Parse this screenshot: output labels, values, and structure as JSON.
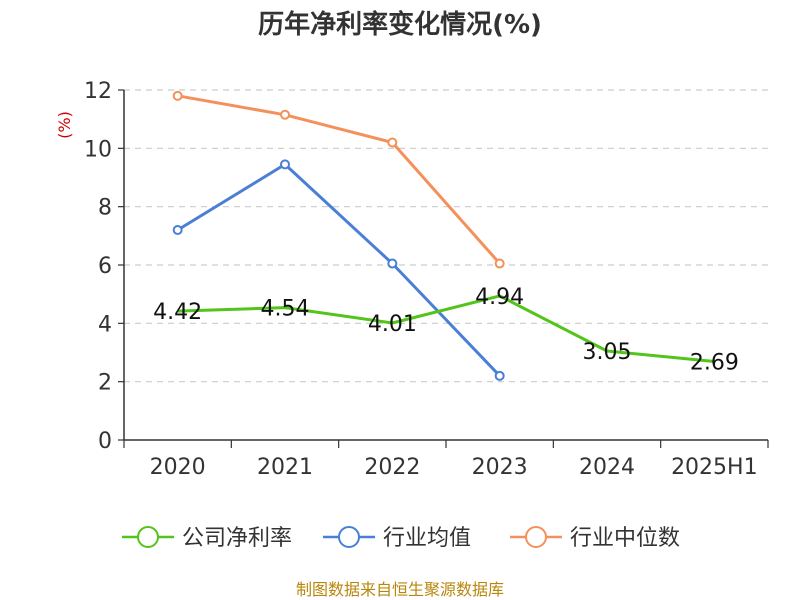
{
  "chart_data": {
    "type": "line",
    "title": "历年净利率变化情况(%)",
    "ylabel": "(%)",
    "categories": [
      "2020",
      "2021",
      "2022",
      "2023",
      "2024",
      "2025H1"
    ],
    "ylim": [
      0,
      12
    ],
    "yticks": [
      "0",
      "2",
      "4",
      "6",
      "8",
      "10",
      "12"
    ],
    "grid": true,
    "legend_position": "bottom",
    "series": [
      {
        "name": "公司净利率",
        "color": "#52c41a",
        "values": [
          4.42,
          4.54,
          4.01,
          4.94,
          3.05,
          2.69
        ],
        "labels": [
          "4.42",
          "4.54",
          "4.01",
          "4.94",
          "3.05",
          "2.69"
        ],
        "show_markers": false
      },
      {
        "name": "行业均值",
        "color": "#4a7fd6",
        "values": [
          7.2,
          9.45,
          6.05,
          2.2,
          null,
          null
        ],
        "show_markers": true
      },
      {
        "name": "行业中位数",
        "color": "#f4905a",
        "values": [
          11.8,
          11.15,
          10.2,
          6.05,
          null,
          null
        ],
        "show_markers": true
      }
    ]
  },
  "source_text": "制图数据来自恒生聚源数据库"
}
